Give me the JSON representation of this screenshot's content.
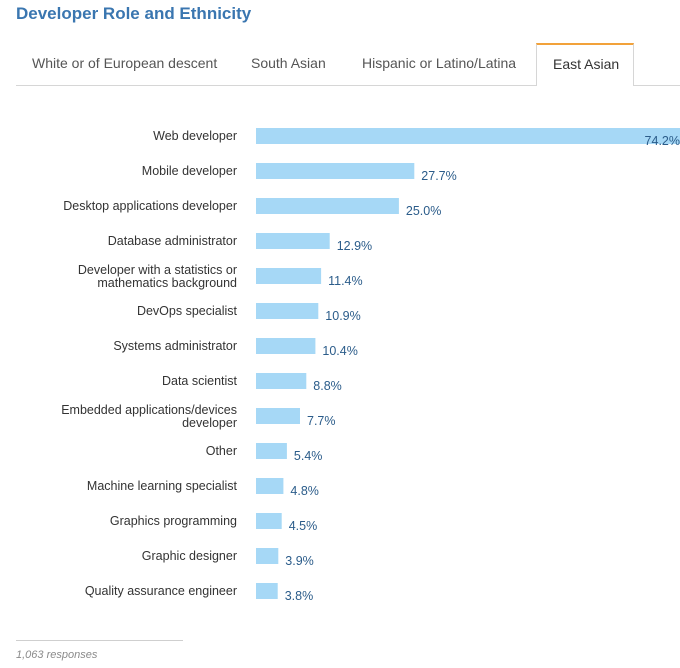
{
  "header": {
    "title": "Developer Role and Ethnicity"
  },
  "tabs": [
    {
      "label": "White or of European descent",
      "active": false
    },
    {
      "label": "South Asian",
      "active": false
    },
    {
      "label": "Hispanic or Latino/Latina",
      "active": false
    },
    {
      "label": "East Asian",
      "active": true
    }
  ],
  "colors": {
    "bar": "#a6d8f6",
    "title": "#3a76b0",
    "active_tab_accent": "#f2a23a",
    "value_text": "#2b5c8a"
  },
  "chart_data": {
    "type": "bar",
    "orientation": "horizontal",
    "title": "Developer Role and Ethnicity",
    "series_name": "East Asian",
    "unit": "%",
    "xlim": [
      0,
      74.2
    ],
    "categories": [
      "Web developer",
      "Mobile developer",
      "Desktop applications developer",
      "Database administrator",
      "Developer with a statistics or mathematics background",
      "DevOps specialist",
      "Systems administrator",
      "Data scientist",
      "Embedded applications/devices developer",
      "Other",
      "Machine learning specialist",
      "Graphics programming",
      "Graphic designer",
      "Quality assurance engineer"
    ],
    "category_lines": [
      [
        "Web developer"
      ],
      [
        "Mobile developer"
      ],
      [
        "Desktop applications developer"
      ],
      [
        "Database administrator"
      ],
      [
        "Developer with a statistics or",
        "mathematics background"
      ],
      [
        "DevOps specialist"
      ],
      [
        "Systems administrator"
      ],
      [
        "Data scientist"
      ],
      [
        "Embedded applications/devices",
        "developer"
      ],
      [
        "Other"
      ],
      [
        "Machine learning specialist"
      ],
      [
        "Graphics programming"
      ],
      [
        "Graphic designer"
      ],
      [
        "Quality assurance engineer"
      ]
    ],
    "values": [
      74.2,
      27.7,
      25.0,
      12.9,
      11.4,
      10.9,
      10.4,
      8.8,
      7.7,
      5.4,
      4.8,
      4.5,
      3.9,
      3.8
    ],
    "value_labels": [
      "74.2%",
      "27.7%",
      "25.0%",
      "12.9%",
      "11.4%",
      "10.9%",
      "10.4%",
      "8.8%",
      "7.7%",
      "5.4%",
      "4.8%",
      "4.5%",
      "3.9%",
      "3.8%"
    ]
  },
  "footer": {
    "responses": "1,063 responses"
  }
}
